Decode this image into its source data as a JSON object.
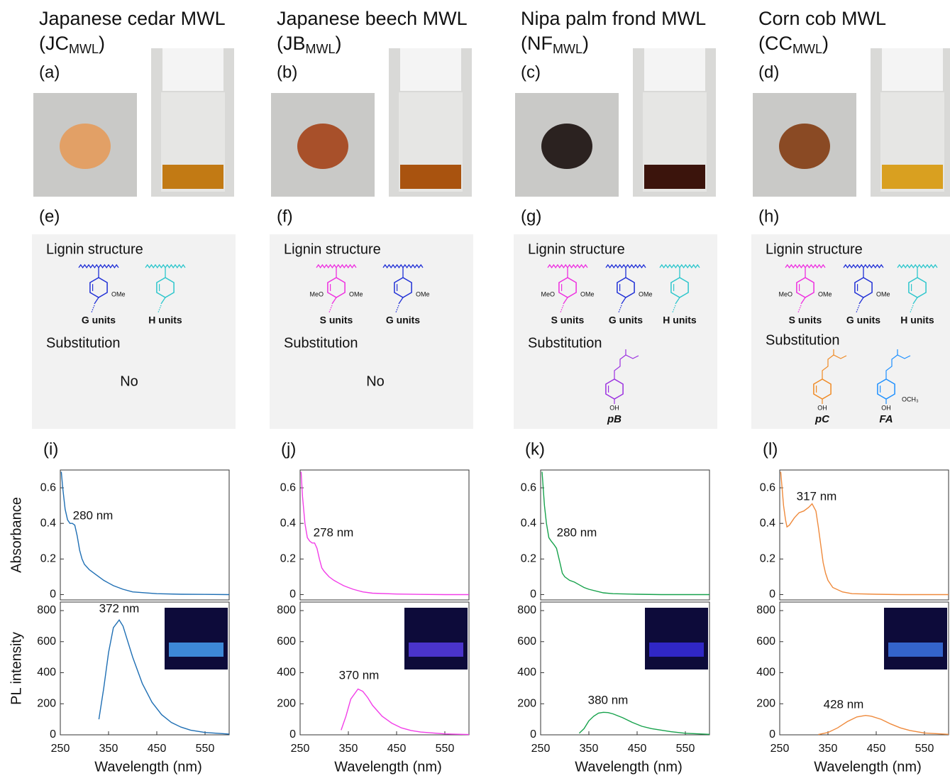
{
  "columns": [
    {
      "title": "Japanese cedar MWL",
      "abbr": "(JC",
      "abbr_sub": "MWL",
      "abbr_close": ")",
      "color": "#1a78c2",
      "photo_panel": "(a)",
      "structure_panel": "(e)",
      "spectra_panel": "(i)",
      "box": {
        "heading": "Lignin structure",
        "units": [
          {
            "name": "G units",
            "color": "#1f2fd6",
            "substituents": [
              "OMe"
            ]
          },
          {
            "name": "H units",
            "color": "#2cc6cc",
            "substituents": []
          }
        ],
        "substitution_heading": "Substitution",
        "substitution": "No"
      }
    },
    {
      "title": "Japanese beech MWL",
      "abbr": "(JB",
      "abbr_sub": "MWL",
      "abbr_close": ")",
      "color": "#f23ee8",
      "photo_panel": "(b)",
      "structure_panel": "(f)",
      "spectra_panel": "(j)",
      "box": {
        "heading": "Lignin structure",
        "units": [
          {
            "name": "S units",
            "color": "#ee2ee0",
            "substituents": [
              "MeO",
              "OMe"
            ]
          },
          {
            "name": "G units",
            "color": "#1f2fd6",
            "substituents": [
              "OMe"
            ]
          }
        ],
        "substitution_heading": "Substitution",
        "substitution": "No"
      }
    },
    {
      "title": "Nipa palm frond MWL",
      "abbr": "(NF",
      "abbr_sub": "MWL",
      "abbr_close": ")",
      "color": "#17a24c",
      "photo_panel": "(c)",
      "structure_panel": "(g)",
      "spectra_panel": "(k)",
      "box": {
        "heading": "Lignin structure",
        "units": [
          {
            "name": "S units",
            "color": "#ee2ee0",
            "substituents": [
              "MeO",
              "OMe"
            ]
          },
          {
            "name": "G units",
            "color": "#1f2fd6",
            "substituents": [
              "OMe"
            ]
          },
          {
            "name": "H units",
            "color": "#2cc6cc",
            "substituents": []
          }
        ],
        "substitution_heading": "Substitution",
        "molecules": [
          {
            "name": "pB",
            "color": "#9b30e0",
            "labels": [
              "OH"
            ]
          }
        ]
      }
    },
    {
      "title": "Corn cob MWL",
      "abbr": "(CC",
      "abbr_sub": "MWL",
      "abbr_close": ")",
      "color": "#ef8a3c",
      "photo_panel": "(d)",
      "structure_panel": "(h)",
      "spectra_panel": "(l)",
      "box": {
        "heading": "Lignin structure",
        "units": [
          {
            "name": "S units",
            "color": "#ee2ee0",
            "substituents": [
              "MeO",
              "OMe"
            ]
          },
          {
            "name": "G units",
            "color": "#1f2fd6",
            "substituents": [
              "OMe"
            ]
          },
          {
            "name": "H units",
            "color": "#2cc6cc",
            "substituents": []
          }
        ],
        "substitution_heading": "Substitution",
        "molecules": [
          {
            "name": "pC",
            "color": "#f08a24",
            "labels": [
              "OH"
            ]
          },
          {
            "name": "FA",
            "color": "#1e90ff",
            "labels": [
              "OH",
              "OCH₃"
            ]
          }
        ]
      }
    }
  ],
  "chart_data": [
    {
      "type": "line",
      "ylabel": "Absorbance",
      "annotation": "280 nm",
      "xlim": [
        250,
        600
      ],
      "ylim": [
        -0.03,
        0.7
      ],
      "yticks": [
        0,
        0.2,
        0.4,
        0.6
      ],
      "series": [
        {
          "color": "#1f6fb4",
          "x": [
            252,
            255,
            260,
            265,
            270,
            275,
            280,
            285,
            290,
            295,
            300,
            310,
            320,
            330,
            340,
            350,
            360,
            380,
            400,
            450,
            500,
            550,
            600
          ],
          "values": [
            0.69,
            0.6,
            0.48,
            0.42,
            0.4,
            0.4,
            0.39,
            0.33,
            0.25,
            0.2,
            0.17,
            0.14,
            0.12,
            0.1,
            0.08,
            0.065,
            0.05,
            0.03,
            0.015,
            0.005,
            0.002,
            0.001,
            0
          ]
        }
      ]
    },
    {
      "type": "line",
      "ylabel": "PL intensity",
      "xlabel": "Wavelength (nm)",
      "annotation": "372 nm",
      "xlim": [
        250,
        600
      ],
      "xticks": [
        250,
        350,
        450,
        550
      ],
      "ylim": [
        0,
        855
      ],
      "yticks": [
        0,
        200,
        400,
        600,
        800
      ],
      "series": [
        {
          "color": "#1f6fb4",
          "x": [
            330,
            340,
            350,
            360,
            372,
            380,
            390,
            400,
            420,
            440,
            460,
            480,
            500,
            520,
            550,
            600
          ],
          "values": [
            100,
            300,
            530,
            690,
            740,
            700,
            600,
            500,
            330,
            210,
            130,
            80,
            50,
            30,
            15,
            5
          ]
        }
      ]
    },
    {
      "type": "line",
      "annotation": "278 nm",
      "xlim": [
        250,
        600
      ],
      "ylim": [
        -0.03,
        0.7
      ],
      "yticks": [
        0,
        0.2,
        0.4,
        0.6
      ],
      "series": [
        {
          "color": "#f23ee8",
          "x": [
            252,
            255,
            260,
            265,
            270,
            275,
            280,
            285,
            290,
            295,
            300,
            310,
            320,
            330,
            340,
            350,
            360,
            380,
            400,
            450,
            500,
            550,
            600
          ],
          "values": [
            0.69,
            0.55,
            0.4,
            0.32,
            0.3,
            0.29,
            0.29,
            0.26,
            0.2,
            0.15,
            0.13,
            0.1,
            0.08,
            0.065,
            0.05,
            0.04,
            0.03,
            0.015,
            0.008,
            0.003,
            0.001,
            0,
            0
          ]
        }
      ]
    },
    {
      "type": "line",
      "xlabel": "Wavelength (nm)",
      "annotation": "370 nm",
      "xlim": [
        250,
        600
      ],
      "xticks": [
        250,
        350,
        450,
        550
      ],
      "ylim": [
        0,
        855
      ],
      "yticks": [
        0,
        200,
        400,
        600,
        800
      ],
      "series": [
        {
          "color": "#f23ee8",
          "x": [
            335,
            345,
            355,
            370,
            380,
            390,
            400,
            420,
            440,
            460,
            480,
            500,
            550,
            600
          ],
          "values": [
            30,
            120,
            230,
            295,
            280,
            240,
            190,
            120,
            75,
            45,
            28,
            18,
            6,
            2
          ]
        }
      ]
    },
    {
      "type": "line",
      "annotation": "280 nm",
      "xlim": [
        250,
        600
      ],
      "ylim": [
        -0.03,
        0.7
      ],
      "yticks": [
        0,
        0.2,
        0.4,
        0.6
      ],
      "series": [
        {
          "color": "#17a24c",
          "x": [
            253,
            258,
            262,
            267,
            272,
            278,
            283,
            290,
            295,
            300,
            310,
            320,
            330,
            340,
            350,
            380,
            400,
            450,
            500,
            550,
            600
          ],
          "values": [
            0.69,
            0.5,
            0.4,
            0.32,
            0.3,
            0.28,
            0.26,
            0.18,
            0.12,
            0.1,
            0.08,
            0.07,
            0.055,
            0.04,
            0.03,
            0.01,
            0.005,
            0.002,
            0,
            0,
            0
          ]
        }
      ]
    },
    {
      "type": "line",
      "xlabel": "Wavelength (nm)",
      "annotation": "380 nm",
      "xlim": [
        250,
        600
      ],
      "xticks": [
        250,
        350,
        450,
        550
      ],
      "ylim": [
        0,
        855
      ],
      "yticks": [
        0,
        200,
        400,
        600,
        800
      ],
      "series": [
        {
          "color": "#17a24c",
          "x": [
            330,
            340,
            350,
            360,
            370,
            380,
            390,
            400,
            420,
            440,
            460,
            480,
            500,
            520,
            550,
            600
          ],
          "values": [
            10,
            40,
            90,
            120,
            140,
            145,
            143,
            135,
            110,
            80,
            55,
            40,
            30,
            20,
            10,
            3
          ]
        }
      ]
    },
    {
      "type": "line",
      "annotation": "317 nm",
      "xlim": [
        250,
        600
      ],
      "ylim": [
        -0.03,
        0.7
      ],
      "yticks": [
        0,
        0.2,
        0.4,
        0.6
      ],
      "series": [
        {
          "color": "#ef8a3c",
          "x": [
            252,
            258,
            262,
            265,
            270,
            280,
            290,
            300,
            310,
            317,
            325,
            330,
            335,
            340,
            345,
            350,
            360,
            380,
            400,
            450,
            500,
            550,
            600
          ],
          "values": [
            0.69,
            0.5,
            0.42,
            0.38,
            0.39,
            0.43,
            0.46,
            0.47,
            0.49,
            0.51,
            0.47,
            0.38,
            0.28,
            0.18,
            0.12,
            0.08,
            0.04,
            0.015,
            0.005,
            0.002,
            0,
            0,
            0
          ]
        }
      ]
    },
    {
      "type": "line",
      "xlabel": "Wavelength (nm)",
      "annotation": "428 nm",
      "xlim": [
        250,
        600
      ],
      "xticks": [
        250,
        350,
        450,
        550
      ],
      "ylim": [
        0,
        855
      ],
      "yticks": [
        0,
        200,
        400,
        600,
        800
      ],
      "series": [
        {
          "color": "#ef8a3c",
          "x": [
            330,
            350,
            370,
            390,
            410,
            428,
            440,
            460,
            480,
            500,
            520,
            550,
            600
          ],
          "values": [
            2,
            15,
            45,
            85,
            115,
            125,
            120,
            100,
            70,
            45,
            28,
            12,
            3
          ]
        }
      ]
    }
  ]
}
